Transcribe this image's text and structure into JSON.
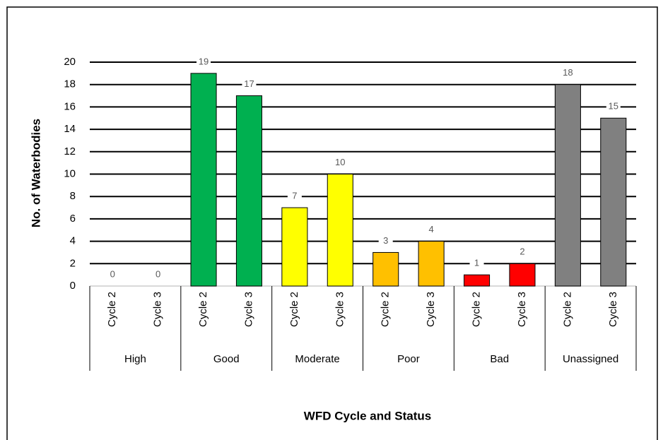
{
  "chart_data": {
    "type": "bar",
    "y_axis_label": "No. of Waterbodies",
    "x_axis_label": "WFD Cycle and Status",
    "categories": [
      "Cycle 2",
      "Cycle 3",
      "Cycle 2",
      "Cycle 3",
      "Cycle 2",
      "Cycle 3",
      "Cycle 2",
      "Cycle 3",
      "Cycle 2",
      "Cycle 3",
      "Cycle 2",
      "Cycle 3"
    ],
    "groups": [
      "High",
      "Good",
      "Moderate",
      "Poor",
      "Bad",
      "Unassigned"
    ],
    "group_colors": [
      "#4472c4",
      "#00b050",
      "#ffff00",
      "#ffc000",
      "#ff0000",
      "#808080"
    ],
    "values": [
      0,
      0,
      19,
      17,
      7,
      10,
      3,
      4,
      1,
      2,
      18,
      15
    ],
    "ylim": [
      0,
      20
    ],
    "yticks": [
      0,
      2,
      4,
      6,
      8,
      10,
      12,
      14,
      16,
      18,
      20
    ],
    "grid": true
  }
}
